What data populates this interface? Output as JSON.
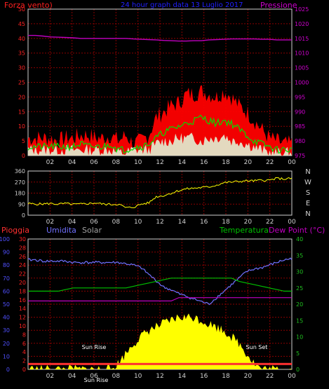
{
  "colors": {
    "background": "#000000",
    "plot_bg": "#000000",
    "grid": "#8b0000",
    "axis": "#d0d0d0",
    "tick_red": "#ff2020",
    "tick_green": "#20c020",
    "tick_magenta": "#d000d0",
    "tick_blue": "#5050ff",
    "title_blue": "#2020ff",
    "wind_red": "#ff0000",
    "wind_green": "#00e000",
    "wind_white": "#e0ffe0",
    "pressure": "#c000c0",
    "direction": "#ffff00",
    "humidity": "#7070ff",
    "temperature": "#00c000",
    "dewpoint": "#c000c0",
    "solar": "#ffff00",
    "rain": "#ff3030",
    "white": "#ffffff"
  },
  "chart_data": [
    {
      "type": "line",
      "title": "24 hour graph data  13 Luglio 2017",
      "left_label": "Forza vento)",
      "right_label": "Pressione",
      "x_ticks": [
        "02",
        "04",
        "06",
        "08",
        "10",
        "12",
        "14",
        "16",
        "18",
        "20",
        "22",
        "00"
      ],
      "y_left_ticks": [
        0,
        5,
        10,
        15,
        20,
        25,
        30,
        35,
        40,
        45,
        50
      ],
      "y_right_ticks": [
        975,
        980,
        985,
        990,
        995,
        1000,
        1005,
        1010,
        1015,
        1020,
        1025
      ],
      "ylim_left": [
        0,
        50
      ],
      "ylim_right": [
        975,
        1025
      ],
      "series": [
        {
          "name": "wind_gust",
          "values": [
            6,
            6,
            6,
            6,
            5,
            6,
            6,
            7,
            7,
            6,
            6,
            7,
            5,
            7,
            4,
            5,
            7,
            13,
            15,
            17,
            18,
            21,
            21,
            22,
            21,
            20,
            22,
            20,
            17,
            15,
            12,
            9,
            6,
            5,
            4,
            4
          ]
        },
        {
          "name": "wind_avg",
          "values": [
            3,
            3,
            3,
            3,
            3,
            3,
            3,
            4,
            3,
            3,
            3,
            4,
            2,
            2,
            3,
            3,
            4,
            6,
            8,
            9,
            10,
            11,
            12,
            13,
            12,
            11,
            12,
            11,
            9,
            7,
            5,
            4,
            3,
            2,
            2,
            2
          ]
        },
        {
          "name": "wind_low",
          "values": [
            2,
            2,
            2,
            2,
            2,
            2,
            2,
            2,
            2,
            2,
            2,
            2,
            1,
            1,
            2,
            2,
            2,
            4,
            5,
            5,
            6,
            6,
            6,
            5,
            6,
            6,
            7,
            5,
            5,
            4,
            3,
            2,
            1,
            1,
            1,
            1
          ]
        },
        {
          "name": "pressure",
          "values": [
            1016,
            1016,
            1015.8,
            1015.5,
            1015.4,
            1015.3,
            1015.2,
            1015,
            1015,
            1015,
            1015,
            1015,
            1015,
            1015,
            1014.8,
            1014.7,
            1014.6,
            1014.5,
            1014.3,
            1014.2,
            1014.1,
            1014.1,
            1014.2,
            1014.2,
            1014.5,
            1014.6,
            1014.7,
            1014.8,
            1014.8,
            1014.8,
            1014.8,
            1014.7,
            1014.7,
            1014.5,
            1014.5,
            1014.5
          ]
        }
      ]
    },
    {
      "type": "line",
      "x_ticks": [
        "02",
        "04",
        "06",
        "08",
        "10",
        "12",
        "14",
        "16",
        "18",
        "20",
        "22",
        "00"
      ],
      "y_ticks": [
        0,
        90,
        180,
        270,
        360
      ],
      "right_labels": [
        "N",
        "W",
        "S",
        "E",
        "N"
      ],
      "ylim": [
        0,
        360
      ],
      "series": [
        {
          "name": "wind_direction",
          "values": [
            95,
            90,
            92,
            95,
            90,
            95,
            88,
            90,
            95,
            100,
            90,
            88,
            90,
            60,
            65,
            90,
            100,
            150,
            160,
            180,
            200,
            215,
            220,
            225,
            230,
            245,
            265,
            270,
            275,
            280,
            280,
            285,
            285,
            300,
            295,
            300
          ]
        }
      ]
    },
    {
      "type": "line",
      "labels": {
        "rain": "Pioggia",
        "humidity": "Umidita",
        "solar": "Solar",
        "temperature": "Temperatura",
        "dewpoint": "Dew Point (°C)"
      },
      "annotations": [
        "Sun Rise",
        "Sun Rise",
        "Sun Set"
      ],
      "x_ticks": [
        "02",
        "04",
        "06",
        "08",
        "10",
        "12",
        "14",
        "16",
        "18",
        "20",
        "22",
        "00"
      ],
      "y_humidity_ticks": [
        0,
        10,
        20,
        30,
        40,
        50,
        60,
        70,
        80,
        90,
        100
      ],
      "y_rain_ticks": [
        0,
        2,
        4,
        6,
        8,
        10,
        12,
        14,
        16,
        18,
        20,
        22,
        24,
        26,
        28,
        30
      ],
      "y_temp_ticks": [
        0,
        5,
        10,
        15,
        20,
        25,
        30,
        35,
        40
      ],
      "series": [
        {
          "name": "humidity",
          "values": [
            84,
            84,
            83,
            83,
            83,
            83,
            82,
            82,
            82,
            82,
            82,
            82,
            82,
            81,
            80,
            78,
            73,
            68,
            63,
            61,
            58,
            56,
            54,
            52,
            50,
            55,
            60,
            65,
            70,
            75,
            77,
            78,
            80,
            82,
            84,
            85
          ]
        },
        {
          "name": "temperature",
          "values": [
            24,
            24,
            24,
            24,
            24,
            24.5,
            25,
            25,
            25,
            25,
            25,
            25,
            25,
            25,
            25.5,
            26,
            26.5,
            27,
            27.5,
            28,
            28,
            28,
            28,
            28,
            28,
            28,
            28,
            28,
            27,
            26.5,
            26,
            25.5,
            25,
            24.5,
            24,
            24
          ]
        },
        {
          "name": "dewpoint",
          "values": [
            21,
            21,
            21,
            21,
            21,
            21,
            21,
            21,
            21,
            21,
            21,
            21,
            21,
            21,
            21,
            21,
            21,
            21,
            21,
            21,
            22,
            22,
            22,
            22,
            22,
            22,
            22,
            22,
            22,
            22,
            22,
            22,
            22,
            22,
            22,
            22
          ]
        },
        {
          "name": "solar",
          "values": [
            0,
            0,
            0,
            0,
            0,
            0,
            0,
            0,
            0,
            0,
            0,
            0,
            2,
            5,
            8,
            10,
            12,
            13,
            14,
            15,
            16,
            16,
            16,
            15,
            14,
            13,
            12,
            10,
            8,
            5,
            2,
            0,
            0,
            0,
            0,
            0
          ]
        },
        {
          "name": "rain",
          "values": [
            1,
            1,
            1,
            1,
            1,
            1,
            1,
            1,
            1,
            1,
            1,
            1,
            1,
            1,
            1,
            1,
            1,
            1,
            1,
            1,
            1,
            1,
            1,
            1,
            1,
            1,
            1,
            1,
            1,
            1,
            1,
            1,
            1,
            1,
            1,
            1
          ]
        }
      ]
    }
  ]
}
